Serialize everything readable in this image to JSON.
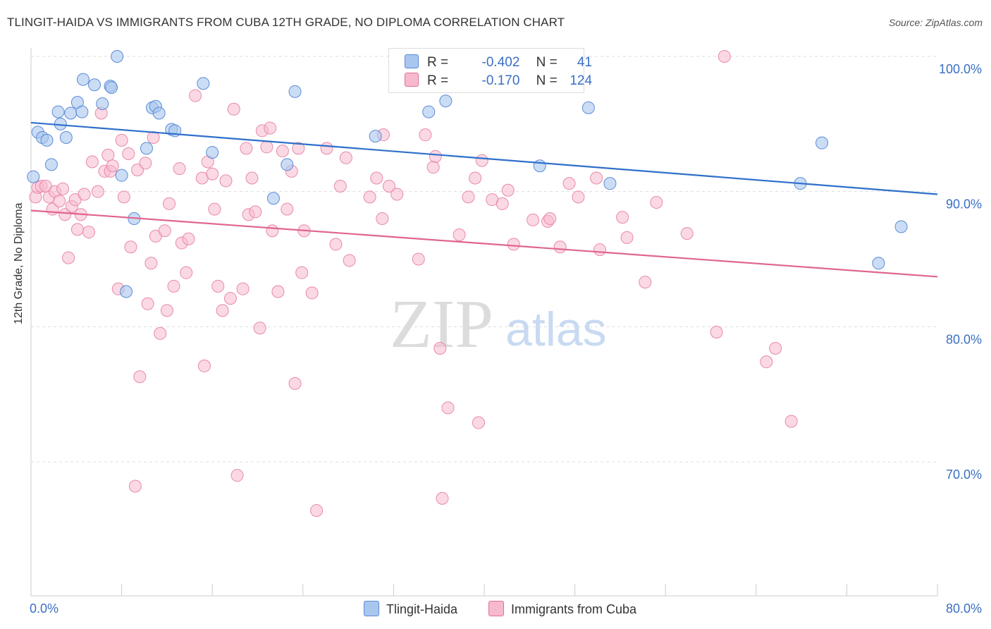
{
  "header": {
    "title": "TLINGIT-HAIDA VS IMMIGRANTS FROM CUBA 12TH GRADE, NO DIPLOMA CORRELATION CHART",
    "source": "Source: ZipAtlas.com"
  },
  "watermark": {
    "zip": "ZIP",
    "atlas": "atlas"
  },
  "legend": {
    "rows": [
      {
        "r_label": "R =",
        "r_value": "-0.402",
        "n_label": "N =",
        "n_value": "41",
        "color": "#a9c6ee",
        "stroke": "#5b8bd6"
      },
      {
        "r_label": "R =",
        "r_value": "-0.170",
        "n_label": "N =",
        "n_value": "124",
        "color": "#f7b9cd",
        "stroke": "#e07096"
      }
    ]
  },
  "colors": {
    "blue_fill": "#a9c6ee",
    "blue_stroke": "#5b8bd6",
    "blue_line": "#2e6fcb",
    "pink_fill": "#f7b9cd",
    "pink_stroke": "#e889a9",
    "pink_line": "#e0658f",
    "tick_label": "#3a6fc4",
    "grid": "#dddddd"
  },
  "chart_data": {
    "type": "scatter",
    "title": "TLINGIT-HAIDA VS IMMIGRANTS FROM CUBA 12TH GRADE, NO DIPLOMA CORRELATION CHART",
    "xlabel": "",
    "ylabel": "12th Grade, No Diploma",
    "xlim": [
      0,
      80
    ],
    "ylim": [
      60,
      102
    ],
    "x_tick_labels": [
      "0.0%",
      "80.0%"
    ],
    "y_ticks": [
      70,
      80,
      90,
      100
    ],
    "y_tick_labels": [
      "70.0%",
      "80.0%",
      "90.0%",
      "100.0%"
    ],
    "grid": true,
    "legend_position": "top-center",
    "series": [
      {
        "name": "Tlingit-Haida",
        "trend": {
          "x0": 0,
          "y0": 95.1,
          "x1": 80,
          "y1": 89.8
        },
        "points": [
          [
            0.2,
            91.1
          ],
          [
            0.6,
            94.4
          ],
          [
            1.0,
            94.0
          ],
          [
            1.4,
            93.8
          ],
          [
            1.8,
            92.0
          ],
          [
            2.4,
            95.9
          ],
          [
            2.6,
            95.0
          ],
          [
            3.1,
            94.0
          ],
          [
            3.5,
            95.8
          ],
          [
            4.1,
            96.6
          ],
          [
            4.5,
            95.9
          ],
          [
            4.6,
            98.3
          ],
          [
            5.6,
            97.9
          ],
          [
            6.3,
            96.5
          ],
          [
            7.0,
            97.8
          ],
          [
            7.1,
            97.7
          ],
          [
            7.6,
            100.0
          ],
          [
            8.0,
            91.2
          ],
          [
            9.1,
            88.0
          ],
          [
            10.2,
            93.2
          ],
          [
            10.7,
            96.2
          ],
          [
            11.0,
            96.3
          ],
          [
            11.3,
            95.8
          ],
          [
            12.4,
            94.6
          ],
          [
            12.7,
            94.5
          ],
          [
            15.2,
            98.0
          ],
          [
            16.0,
            92.9
          ],
          [
            21.4,
            89.5
          ],
          [
            22.6,
            92.0
          ],
          [
            23.3,
            97.4
          ],
          [
            30.4,
            94.1
          ],
          [
            35.1,
            95.9
          ],
          [
            36.6,
            96.7
          ],
          [
            44.9,
            91.9
          ],
          [
            49.2,
            96.2
          ],
          [
            51.1,
            90.6
          ],
          [
            67.9,
            90.6
          ],
          [
            69.8,
            93.6
          ],
          [
            76.8,
            87.4
          ],
          [
            74.8,
            84.7
          ],
          [
            8.4,
            82.6
          ]
        ]
      },
      {
        "name": "Immigrants from Cuba",
        "trend": {
          "x0": 0,
          "y0": 88.6,
          "x1": 80,
          "y1": 83.7
        },
        "points": [
          [
            0.4,
            89.6
          ],
          [
            0.6,
            90.3
          ],
          [
            0.9,
            90.4
          ],
          [
            1.3,
            90.4
          ],
          [
            1.6,
            89.6
          ],
          [
            1.9,
            88.7
          ],
          [
            2.1,
            90.0
          ],
          [
            2.5,
            89.3
          ],
          [
            2.8,
            90.2
          ],
          [
            3.0,
            88.3
          ],
          [
            3.3,
            85.1
          ],
          [
            3.6,
            88.9
          ],
          [
            3.9,
            89.4
          ],
          [
            4.1,
            87.2
          ],
          [
            4.4,
            88.3
          ],
          [
            4.7,
            89.8
          ],
          [
            5.1,
            87.0
          ],
          [
            5.4,
            92.2
          ],
          [
            5.9,
            90.0
          ],
          [
            6.2,
            95.8
          ],
          [
            6.5,
            91.5
          ],
          [
            6.8,
            92.7
          ],
          [
            7.0,
            91.5
          ],
          [
            7.2,
            91.9
          ],
          [
            7.7,
            82.8
          ],
          [
            8.0,
            93.8
          ],
          [
            8.2,
            89.6
          ],
          [
            8.6,
            92.8
          ],
          [
            8.8,
            85.9
          ],
          [
            9.2,
            68.2
          ],
          [
            9.4,
            91.6
          ],
          [
            9.6,
            76.3
          ],
          [
            10.1,
            92.1
          ],
          [
            10.3,
            81.7
          ],
          [
            10.6,
            84.7
          ],
          [
            10.8,
            94.0
          ],
          [
            11.0,
            86.7
          ],
          [
            11.4,
            79.5
          ],
          [
            11.8,
            87.1
          ],
          [
            12.0,
            81.2
          ],
          [
            12.2,
            89.1
          ],
          [
            12.6,
            83.0
          ],
          [
            13.1,
            91.7
          ],
          [
            13.3,
            86.2
          ],
          [
            13.7,
            84.0
          ],
          [
            13.9,
            86.5
          ],
          [
            14.5,
            97.1
          ],
          [
            15.1,
            91.0
          ],
          [
            15.3,
            77.1
          ],
          [
            15.6,
            92.2
          ],
          [
            16.0,
            91.3
          ],
          [
            16.2,
            88.7
          ],
          [
            16.5,
            83.0
          ],
          [
            16.9,
            81.2
          ],
          [
            17.2,
            90.8
          ],
          [
            17.6,
            82.1
          ],
          [
            17.9,
            96.1
          ],
          [
            18.2,
            69.0
          ],
          [
            18.7,
            82.8
          ],
          [
            19.0,
            93.2
          ],
          [
            19.2,
            88.3
          ],
          [
            19.5,
            91.0
          ],
          [
            19.8,
            88.5
          ],
          [
            20.2,
            79.9
          ],
          [
            20.4,
            94.5
          ],
          [
            20.8,
            93.3
          ],
          [
            21.1,
            94.7
          ],
          [
            21.3,
            87.1
          ],
          [
            21.8,
            82.6
          ],
          [
            22.2,
            93.0
          ],
          [
            22.6,
            88.7
          ],
          [
            23.0,
            91.5
          ],
          [
            23.3,
            75.8
          ],
          [
            23.6,
            93.2
          ],
          [
            23.9,
            84.0
          ],
          [
            24.1,
            87.1
          ],
          [
            24.8,
            82.5
          ],
          [
            25.2,
            66.4
          ],
          [
            26.1,
            93.2
          ],
          [
            26.9,
            86.1
          ],
          [
            27.3,
            90.4
          ],
          [
            27.8,
            92.5
          ],
          [
            28.1,
            84.9
          ],
          [
            29.9,
            89.6
          ],
          [
            30.5,
            91.0
          ],
          [
            31.0,
            88.0
          ],
          [
            31.1,
            94.2
          ],
          [
            31.6,
            90.4
          ],
          [
            32.3,
            89.8
          ],
          [
            34.2,
            85.0
          ],
          [
            34.8,
            94.2
          ],
          [
            35.5,
            91.8
          ],
          [
            35.7,
            92.6
          ],
          [
            36.1,
            78.4
          ],
          [
            36.3,
            67.3
          ],
          [
            36.8,
            74.0
          ],
          [
            37.8,
            86.8
          ],
          [
            38.6,
            89.6
          ],
          [
            39.2,
            91.0
          ],
          [
            39.5,
            72.9
          ],
          [
            39.8,
            92.3
          ],
          [
            40.7,
            89.4
          ],
          [
            41.6,
            89.1
          ],
          [
            42.1,
            90.1
          ],
          [
            42.6,
            86.1
          ],
          [
            44.3,
            87.9
          ],
          [
            45.6,
            87.8
          ],
          [
            45.8,
            88.0
          ],
          [
            46.7,
            85.9
          ],
          [
            47.5,
            90.6
          ],
          [
            48.3,
            89.6
          ],
          [
            49.9,
            91.0
          ],
          [
            50.2,
            85.7
          ],
          [
            52.2,
            88.1
          ],
          [
            52.6,
            86.6
          ],
          [
            54.2,
            83.3
          ],
          [
            55.2,
            89.2
          ],
          [
            57.9,
            86.9
          ],
          [
            60.5,
            79.6
          ],
          [
            61.2,
            100.0
          ],
          [
            64.9,
            77.4
          ],
          [
            65.7,
            78.4
          ],
          [
            67.1,
            73.0
          ]
        ]
      }
    ]
  },
  "bottom_legend": {
    "items": [
      {
        "label": "Tlingit-Haida"
      },
      {
        "label": "Immigrants from Cuba"
      }
    ]
  }
}
